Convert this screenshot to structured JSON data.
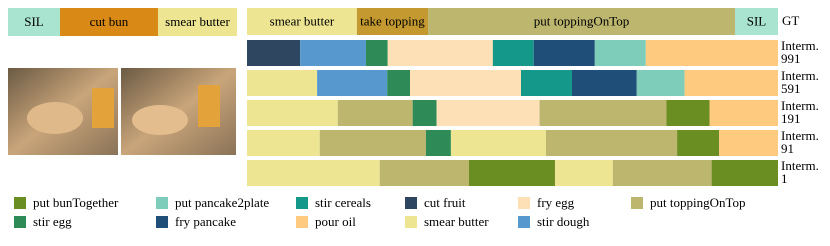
{
  "gt_left": {
    "segments": [
      {
        "label": "SIL",
        "color": "#a8e4cf",
        "length": 22.7
      },
      {
        "label": "cut bun",
        "color": "#d98a16",
        "length": 42.8
      },
      {
        "label": "smear butter",
        "color": "#ede592",
        "length": 34.5
      }
    ]
  },
  "gt_right": {
    "label": "GT",
    "segments": [
      {
        "label": "smear butter",
        "color": "#ede592",
        "length": 20.7
      },
      {
        "label": "take topping",
        "color": "#c49a30",
        "length": 13.4
      },
      {
        "label": "put toppingOnTop",
        "color": "#bdb66f",
        "length": 57.8
      },
      {
        "label": "SIL",
        "color": "#a8e4cf",
        "length": 8.1
      }
    ]
  },
  "rows": [
    {
      "label": [
        "Interm.",
        "991"
      ],
      "segments": [
        {
          "action": "cut fruit",
          "length": 10.0
        },
        {
          "action": "stir dough",
          "length": 12.4
        },
        {
          "action": "stir egg",
          "length": 4.1
        },
        {
          "action": "fry egg",
          "length": 19.8
        },
        {
          "action": "stir cereals",
          "length": 7.7
        },
        {
          "action": "fry pancake",
          "length": 11.5
        },
        {
          "action": "put pancake2plate",
          "length": 9.6
        },
        {
          "action": "pour oil",
          "length": 24.9
        }
      ]
    },
    {
      "label": [
        "Interm.",
        "591"
      ],
      "segments": [
        {
          "action": "smear butter",
          "length": 13.2
        },
        {
          "action": "stir dough",
          "length": 13.2
        },
        {
          "action": "stir egg",
          "length": 4.3
        },
        {
          "action": "fry egg",
          "length": 20.9
        },
        {
          "action": "stir cereals",
          "length": 9.6
        },
        {
          "action": "fry pancake",
          "length": 12.2
        },
        {
          "action": "put pancake2plate",
          "length": 9.0
        },
        {
          "action": "pour oil",
          "length": 17.6
        }
      ]
    },
    {
      "label": [
        "Interm.",
        "191"
      ],
      "segments": [
        {
          "action": "smear butter",
          "length": 17.1
        },
        {
          "action": "put toppingOnTop",
          "length": 14.1
        },
        {
          "action": "stir egg",
          "length": 4.5
        },
        {
          "action": "fry egg",
          "length": 19.4
        },
        {
          "action": "put toppingOnTop",
          "length": 23.9
        },
        {
          "action": "put bunTogether",
          "length": 8.1
        },
        {
          "action": "pour oil",
          "length": 12.9
        }
      ]
    },
    {
      "label": [
        "Interm.",
        "91"
      ],
      "segments": [
        {
          "action": "smear butter",
          "length": 13.7
        },
        {
          "action": "put toppingOnTop",
          "length": 20.0
        },
        {
          "action": "stir egg",
          "length": 4.7
        },
        {
          "action": "smear butter",
          "length": 17.9
        },
        {
          "action": "put toppingOnTop",
          "length": 24.7
        },
        {
          "action": "put bunTogether",
          "length": 7.9
        },
        {
          "action": "pour oil",
          "length": 11.1
        }
      ]
    },
    {
      "label": [
        "Interm.",
        "1"
      ],
      "segments": [
        {
          "action": "smear butter",
          "length": 25.0
        },
        {
          "action": "put toppingOnTop",
          "length": 16.8
        },
        {
          "action": "put bunTogether",
          "length": 16.2
        },
        {
          "action": "smear butter",
          "length": 10.9
        },
        {
          "action": "put toppingOnTop",
          "length": 18.6
        },
        {
          "action": "put bunTogether",
          "length": 12.5
        }
      ]
    }
  ],
  "legend": [
    {
      "name": "put bunTogether",
      "color": "#6b8e23"
    },
    {
      "name": "put pancake2plate",
      "color": "#7ecdbb"
    },
    {
      "name": "stir cereals",
      "color": "#13988a"
    },
    {
      "name": "cut fruit",
      "color": "#2f4660"
    },
    {
      "name": "fry egg",
      "color": "#fde0b5"
    },
    {
      "name": "put toppingOnTop",
      "color": "#bdb66f"
    },
    {
      "name": "stir egg",
      "color": "#2e8b57"
    },
    {
      "name": "fry pancake",
      "color": "#1f4e79"
    },
    {
      "name": "pour oil",
      "color": "#fdca80"
    },
    {
      "name": "smear butter",
      "color": "#ede592"
    },
    {
      "name": "stir dough",
      "color": "#5799cf"
    }
  ]
}
